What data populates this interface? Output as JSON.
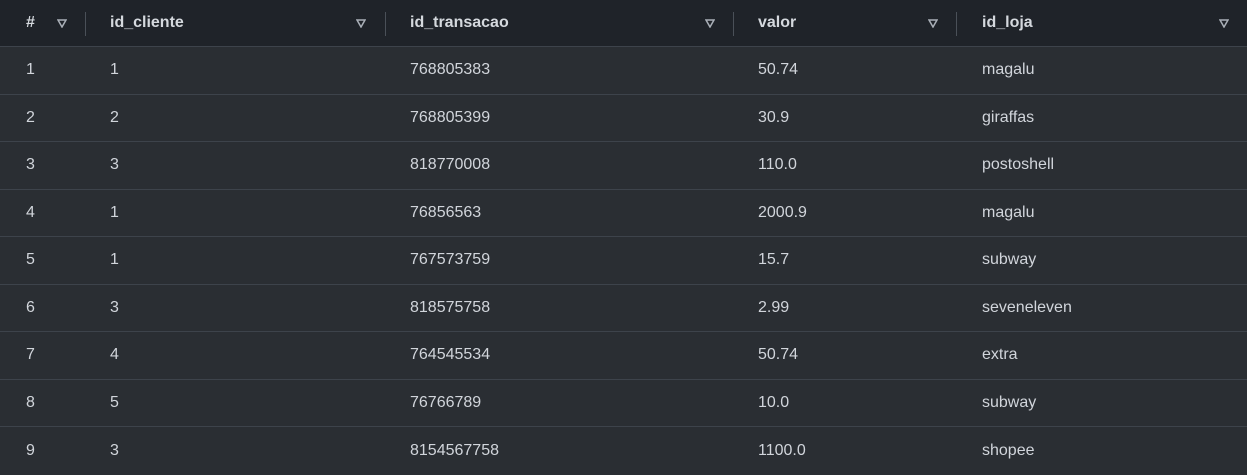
{
  "table": {
    "columns": [
      {
        "label": "#",
        "sort_icon": "filter-triangle-icon"
      },
      {
        "label": "id_cliente",
        "sort_icon": "filter-triangle-icon"
      },
      {
        "label": "id_transacao",
        "sort_icon": "filter-triangle-icon"
      },
      {
        "label": "valor",
        "sort_icon": "filter-triangle-icon"
      },
      {
        "label": "id_loja",
        "sort_icon": "filter-triangle-icon"
      }
    ],
    "rows": [
      [
        "1",
        "1",
        "768805383",
        "50.74",
        "magalu"
      ],
      [
        "2",
        "2",
        "768805399",
        "30.9",
        "giraffas"
      ],
      [
        "3",
        "3",
        "818770008",
        "110.0",
        "postoshell"
      ],
      [
        "4",
        "1",
        "76856563",
        "2000.9",
        "magalu"
      ],
      [
        "5",
        "1",
        "767573759",
        "15.7",
        "subway"
      ],
      [
        "6",
        "3",
        "818575758",
        "2.99",
        "seveneleven"
      ],
      [
        "7",
        "4",
        "764545534",
        "50.74",
        "extra"
      ],
      [
        "8",
        "5",
        "76766789",
        "10.0",
        "subway"
      ],
      [
        "9",
        "3",
        "8154567758",
        "1100.0",
        "shopee"
      ]
    ]
  },
  "colors": {
    "background": "#2a2e33",
    "header_background": "#1f2329",
    "border": "#3d434b",
    "text": "#d1d5db"
  }
}
